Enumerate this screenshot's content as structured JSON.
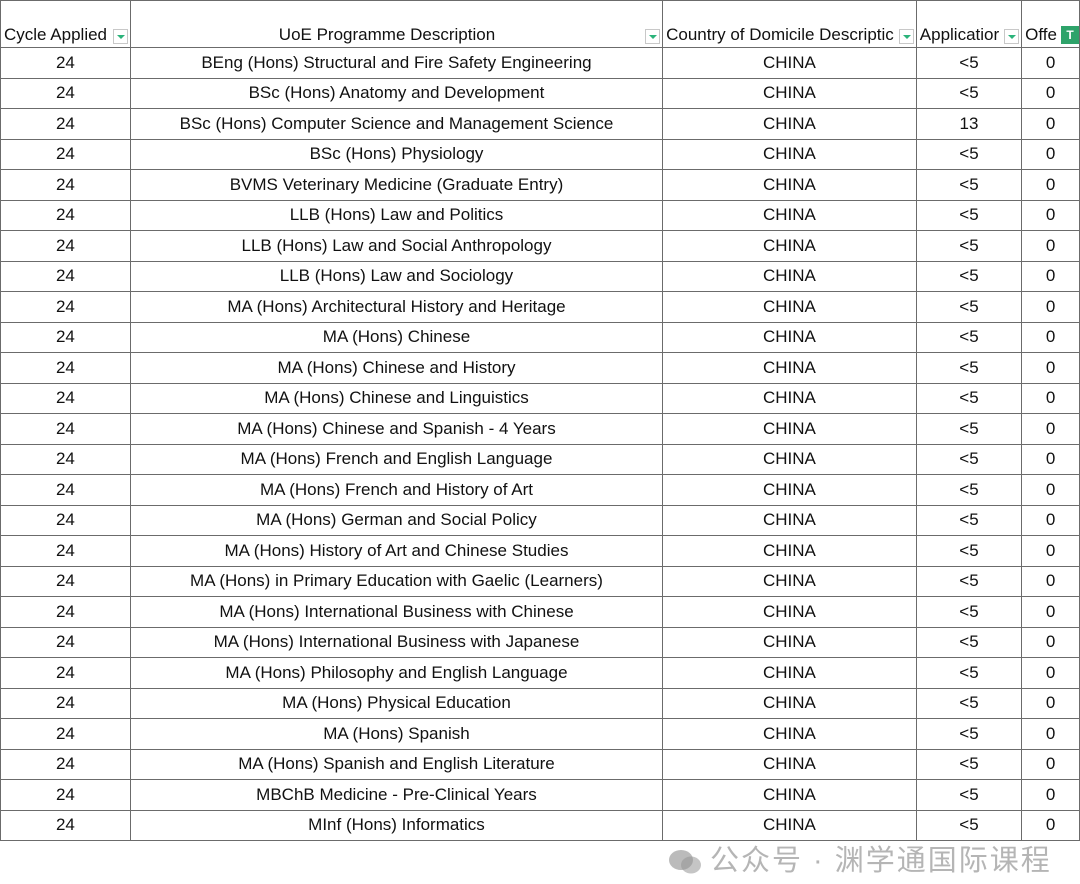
{
  "columns": [
    "Cycle Applied",
    "UoE Programme Description",
    "Country of Domicile Descriptic",
    "Applicatior",
    "Offe"
  ],
  "rows": [
    [
      "24",
      "BEng (Hons) Structural and Fire Safety Engineering",
      "CHINA",
      "<5",
      "0"
    ],
    [
      "24",
      "BSc (Hons) Anatomy and Development",
      "CHINA",
      "<5",
      "0"
    ],
    [
      "24",
      "BSc (Hons) Computer Science and Management Science",
      "CHINA",
      "13",
      "0"
    ],
    [
      "24",
      "BSc (Hons) Physiology",
      "CHINA",
      "<5",
      "0"
    ],
    [
      "24",
      "BVMS Veterinary Medicine (Graduate Entry)",
      "CHINA",
      "<5",
      "0"
    ],
    [
      "24",
      "LLB (Hons) Law and Politics",
      "CHINA",
      "<5",
      "0"
    ],
    [
      "24",
      "LLB (Hons) Law and Social Anthropology",
      "CHINA",
      "<5",
      "0"
    ],
    [
      "24",
      "LLB (Hons) Law and Sociology",
      "CHINA",
      "<5",
      "0"
    ],
    [
      "24",
      "MA (Hons) Architectural History and Heritage",
      "CHINA",
      "<5",
      "0"
    ],
    [
      "24",
      "MA (Hons) Chinese",
      "CHINA",
      "<5",
      "0"
    ],
    [
      "24",
      "MA (Hons) Chinese and History",
      "CHINA",
      "<5",
      "0"
    ],
    [
      "24",
      "MA (Hons) Chinese and Linguistics",
      "CHINA",
      "<5",
      "0"
    ],
    [
      "24",
      "MA (Hons) Chinese and Spanish - 4 Years",
      "CHINA",
      "<5",
      "0"
    ],
    [
      "24",
      "MA (Hons) French and English Language",
      "CHINA",
      "<5",
      "0"
    ],
    [
      "24",
      "MA (Hons) French and History of Art",
      "CHINA",
      "<5",
      "0"
    ],
    [
      "24",
      "MA (Hons) German and Social Policy",
      "CHINA",
      "<5",
      "0"
    ],
    [
      "24",
      "MA (Hons) History of Art and Chinese Studies",
      "CHINA",
      "<5",
      "0"
    ],
    [
      "24",
      "MA (Hons) in Primary Education with Gaelic (Learners)",
      "CHINA",
      "<5",
      "0"
    ],
    [
      "24",
      "MA (Hons) International Business with Chinese",
      "CHINA",
      "<5",
      "0"
    ],
    [
      "24",
      "MA (Hons) International Business with Japanese",
      "CHINA",
      "<5",
      "0"
    ],
    [
      "24",
      "MA (Hons) Philosophy and English Language",
      "CHINA",
      "<5",
      "0"
    ],
    [
      "24",
      "MA (Hons) Physical Education",
      "CHINA",
      "<5",
      "0"
    ],
    [
      "24",
      "MA (Hons) Spanish",
      "CHINA",
      "<5",
      "0"
    ],
    [
      "24",
      "MA (Hons) Spanish and English Literature",
      "CHINA",
      "<5",
      "0"
    ],
    [
      "24",
      "MBChB Medicine - Pre-Clinical Years",
      "CHINA",
      "<5",
      "0"
    ],
    [
      "24",
      "MInf (Hons) Informatics",
      "CHINA",
      "<5",
      "0"
    ]
  ],
  "watermark": "公众号 · 渊学通国际课程",
  "colors": {
    "filter_accent": "#2ea36a",
    "grid": "#6b6b6b"
  }
}
